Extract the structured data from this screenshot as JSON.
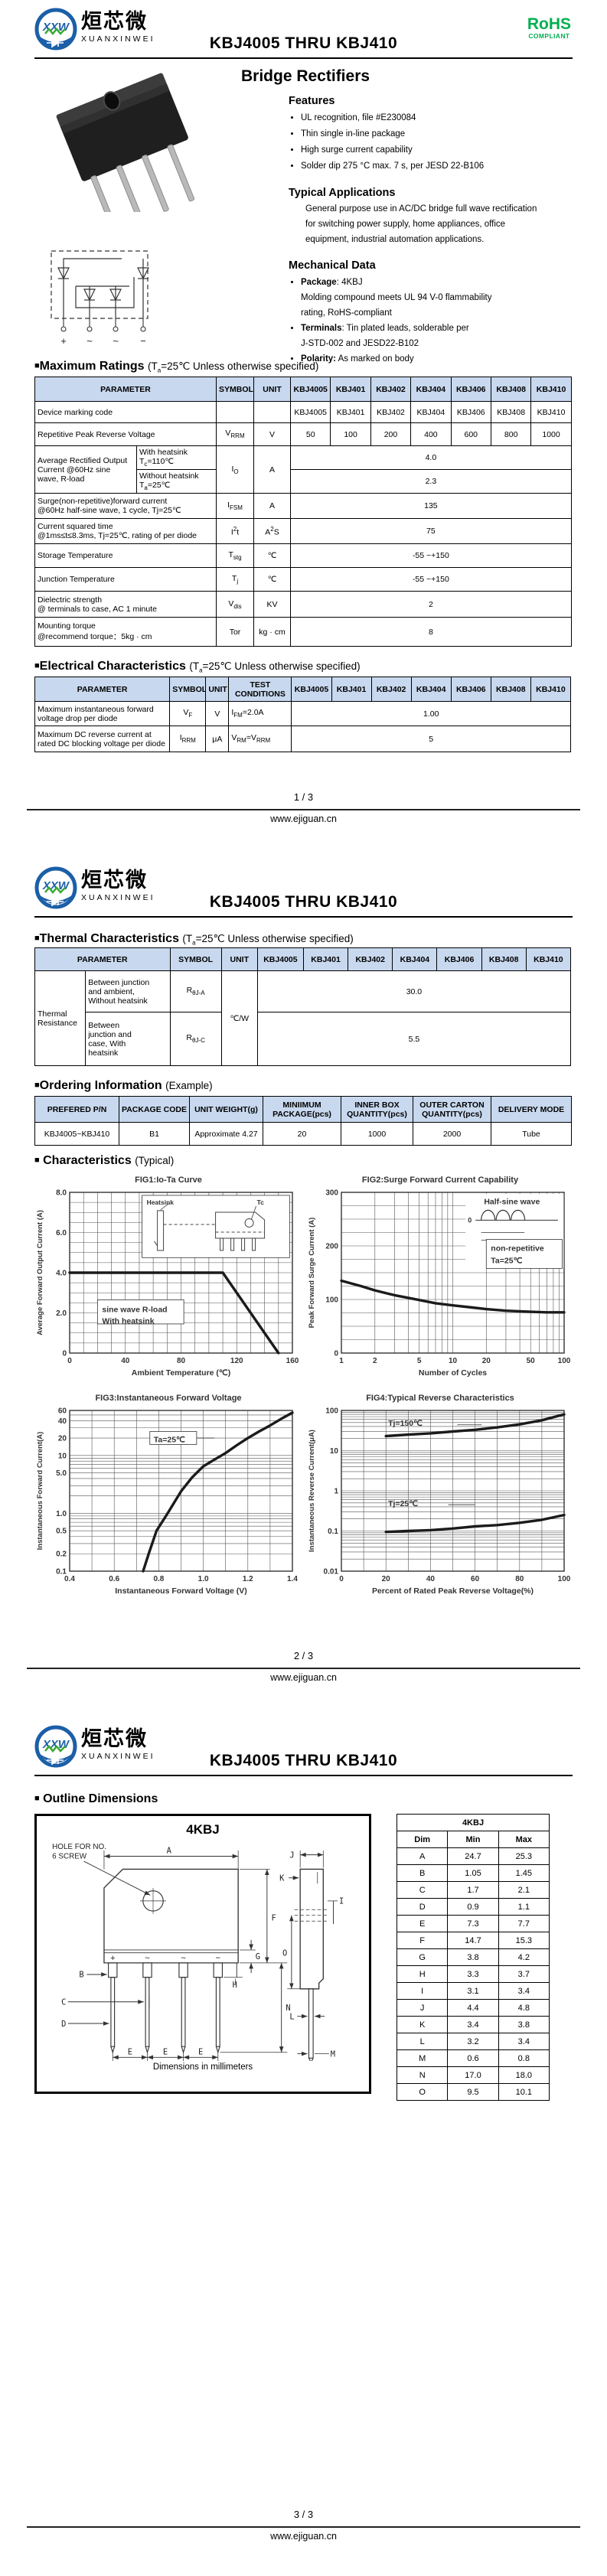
{
  "devices": [
    "KBJ4005",
    "KBJ401",
    "KBJ402",
    "KBJ404",
    "KBJ406",
    "KBJ408",
    "KBJ410"
  ],
  "header": {
    "logo_monogram": "XXW",
    "brand_cn": "烜芯微",
    "brand_en": "XUANXINWEI",
    "title": "KBJ4005 THRU KBJ410",
    "rohs": "RoHS",
    "rohs_sub": "COMPLIANT"
  },
  "footer": {
    "site": "www.ejiguan.cn",
    "page1": "1 / 3",
    "page2": "2 / 3",
    "page3": "3 / 3"
  },
  "page1": {
    "product_title": "Bridge Rectifiers",
    "features_title": "Features",
    "features": [
      "UL recognition, file #E230084",
      "Thin single in-line package",
      "High surge current capability",
      "Solder dip 275 °C max. 7 s, per JESD 22-B106"
    ],
    "apps_title": "Typical  Applications",
    "apps_lines": [
      "General purpose use in AC/DC bridge full wave rectification",
      "for switching power supply, home appliances, office",
      "equipment, industrial automation applications."
    ],
    "mech_title": "Mechanical Data",
    "mech": {
      "i1_bold": "Package",
      "i1_rest": ": 4KBJ",
      "i1_line2": "Molding compound meets UL 94 V-0 flammability",
      "i1_line3": "rating, RoHS-compliant",
      "i2_bold": "Terminals",
      "i2_rest": ": Tin plated leads, solderable per",
      "i2_line2": "J-STD-002 and JESD22-B102",
      "i3_bold": "Polarity:",
      "i3_rest": " As marked on body"
    },
    "schematic_terminals": [
      "+",
      "~",
      "~",
      "−"
    ]
  },
  "max_ratings": {
    "marker": "■",
    "title": "Maximum Ratings",
    "sub_pre": "(T",
    "sub_sub": "a",
    "sub_post": "=25℃ Unless otherwise specified)",
    "headers": {
      "parameter": "PARAMETER",
      "symbol": "SYMBOL",
      "unit": "UNIT"
    },
    "rows": {
      "marking": {
        "param": "Device marking code"
      },
      "vrrm": {
        "param": "Repetitive Peak Reverse Voltage",
        "sym": {
          "main": "V",
          "sub": "RRM"
        },
        "unit": "V",
        "values": [
          "50",
          "100",
          "200",
          "400",
          "600",
          "800",
          "1000"
        ]
      },
      "io": {
        "param_l1": "Average Rectified Output",
        "param_l2": "Current @60Hz sine",
        "param_l3": "wave, R-load",
        "cond1_l1": "With heatsink",
        "cond1_sym": {
          "main": "T",
          "sub": "c",
          "mid": "=110℃"
        },
        "cond2_l1": "Without heatsink",
        "cond2_sym": {
          "main": "T",
          "sub": "a",
          "mid": "=25℃"
        },
        "sym": {
          "main": "I",
          "sub": "O"
        },
        "unit": "A",
        "value1": "4.0",
        "value2": "2.3"
      },
      "ifsm": {
        "param_l1": "Surge(non-repetitive)forward current",
        "param_l2": "@60Hz half-sine wave, 1 cycle, Tj=25℃",
        "sym": {
          "main": "I",
          "sub": "FSM"
        },
        "unit": "A",
        "value": "135"
      },
      "i2t": {
        "param_l1": "Current squared time",
        "param_l2": "@1ms≤t≤8.3ms, Tj=25℃, rating of per diode",
        "sym": {
          "main": "I",
          "sup": "2",
          "mid": "t"
        },
        "unit": {
          "main": "A",
          "sup": "2",
          "mid": "S"
        },
        "value": "75"
      },
      "tstg": {
        "param": "Storage Temperature",
        "sym": {
          "main": "T",
          "sub": "stg"
        },
        "unit": "℃",
        "value": "-55 ~+150"
      },
      "tj": {
        "param": "Junction Temperature",
        "sym": {
          "main": "T",
          "sub": "j"
        },
        "unit": "℃",
        "value": "-55 ~+150"
      },
      "vdis": {
        "param_l1": "Dielectric strength",
        "param_l2": "@ terminals to case, AC 1 minute",
        "sym": {
          "main": "V",
          "sub": "dis"
        },
        "unit": "KV",
        "value": "2"
      },
      "tor": {
        "param_l1": "Mounting torque",
        "param_l2": "@recommend torque：5kg · cm",
        "sym": {
          "main": "Tor"
        },
        "unit": "kg · cm",
        "value": "8"
      }
    }
  },
  "elec": {
    "marker": "■",
    "title": "Electrical Characteristics",
    "sub_pre": "(T",
    "sub_sub": "a",
    "sub_post": "=25℃ Unless otherwise specified)",
    "headers": {
      "parameter": "PARAMETER",
      "symbol": "SYMBOL",
      "unit": "UNIT",
      "test": "TEST CONDITIONS"
    },
    "rows": {
      "vf": {
        "param_l1": "Maximum instantaneous forward",
        "param_l2": "voltage drop per diode",
        "sym": {
          "main": "V",
          "sub": "F"
        },
        "unit": "V",
        "test": {
          "main": "I",
          "sub": "FM",
          "mid": "=2.0A"
        },
        "value": "1.00"
      },
      "irrm": {
        "param_l1": "Maximum DC reverse current at",
        "param_l2": "rated DC blocking voltage per diode",
        "sym": {
          "main": "I",
          "sub": "RRM"
        },
        "unit": "μA",
        "test": {
          "main": "V",
          "sub": "RM",
          "mid": "=V",
          "sub2": "RRM"
        },
        "value": "5"
      }
    }
  },
  "thermal": {
    "marker": "■",
    "title": "Thermal Characteristics",
    "sub_pre": "(T",
    "sub_sub": "a",
    "sub_post": "=25℃ Unless otherwise specified)",
    "headers": {
      "parameter": "PARAMETER",
      "symbol": "SYMBOL",
      "unit": "UNIT"
    },
    "group": "Thermal Resistance",
    "rows": {
      "rja": {
        "cond_l1": "Between junction",
        "cond_l2": "and ambient,",
        "cond_l3": "Without heatsink",
        "sym": {
          "main": "R",
          "sub": "θJ-A"
        },
        "value": "30.0"
      },
      "rjc": {
        "cond_l1": "Between",
        "cond_l2": "junction and",
        "cond_l3": "case, With",
        "cond_l4": "heatsink",
        "sym": {
          "main": "R",
          "sub": "θJ-C"
        },
        "value": "5.5"
      }
    },
    "unit": "℃/W"
  },
  "ordering": {
    "marker": "■",
    "title": "Ordering Information",
    "subtitle": "(Example)",
    "headers": [
      "PREFERED P/N",
      "PACKAGE CODE",
      "UNIT WEIGHT(g)",
      "MINIIMUM PACKAGE(pcs)",
      "INNER BOX QUANTITY(pcs)",
      "OUTER CARTON QUANTITY(pcs)",
      "DELIVERY MODE"
    ],
    "row": [
      "KBJ4005~KBJ410",
      "B1",
      "Approximate 4.27",
      "20",
      "1000",
      "2000",
      "Tube"
    ]
  },
  "characteristics": {
    "marker": "■",
    "title": "Characteristics",
    "subtitle": "(Typical)"
  },
  "chart_data": [
    {
      "id": "fig1",
      "type": "line",
      "title": "FIG1:Io-Ta Curve",
      "xlabel": "Ambient Temperature (℃)",
      "ylabel": "Average Forward Output Current (A)",
      "xlim": [
        0,
        160
      ],
      "ylim": [
        0,
        8
      ],
      "xticks": [
        0,
        40,
        80,
        120,
        160
      ],
      "xtick_labels": [
        "0",
        "40",
        "80",
        "120",
        "160"
      ],
      "yticks": [
        0,
        2,
        4,
        6,
        8
      ],
      "ytick_labels": [
        "0",
        "2.0",
        "4.0",
        "6.0",
        "8.0"
      ],
      "x_minor_step": 10,
      "y_minor_step": 0.5,
      "grid": true,
      "legend": "none",
      "series": [
        {
          "name": "Io with heatsink",
          "points": [
            [
              0,
              4
            ],
            [
              110,
              4
            ],
            [
              150,
              0
            ]
          ]
        }
      ],
      "annotations": [
        "sine wave R-load",
        "With heatsink"
      ],
      "inset_labels": [
        "Heatsink",
        "Tc"
      ]
    },
    {
      "id": "fig2",
      "type": "line",
      "title": "FIG2:Surge Forward Current Capability",
      "xlabel": "Number of Cycles",
      "ylabel": "Peak Forward Surge Current (A)",
      "xscale": "log",
      "xlim": [
        1,
        100
      ],
      "ylim": [
        0,
        300
      ],
      "xticks": [
        1,
        2,
        5,
        10,
        20,
        50,
        100
      ],
      "xtick_labels": [
        "1",
        "2",
        "5",
        "10",
        "20",
        "50",
        "100"
      ],
      "yticks": [
        0,
        100,
        200,
        300
      ],
      "ytick_labels": [
        "0",
        "100",
        "200",
        "300"
      ],
      "y_minor_step": 25,
      "grid": true,
      "legend": "none",
      "series": [
        {
          "name": "IFSM",
          "points": [
            [
              1,
              135
            ],
            [
              1.5,
              125
            ],
            [
              2,
              117
            ],
            [
              3,
              108
            ],
            [
              4,
              103
            ],
            [
              5,
              99
            ],
            [
              7,
              93
            ],
            [
              10,
              89
            ],
            [
              15,
              85
            ],
            [
              20,
              82
            ],
            [
              30,
              79
            ],
            [
              50,
              77
            ],
            [
              70,
              76
            ],
            [
              100,
              76
            ]
          ]
        }
      ],
      "annotations": [
        "Half-sine wave",
        "non-repetitive",
        "Ta=25℃"
      ],
      "inset_zero": "0"
    },
    {
      "id": "fig3",
      "type": "line",
      "title": "FIG3:Instantaneous Forward Voltage",
      "xlabel": "Instantaneous Forward Voltage (V)",
      "ylabel": "Instantaneous Forward Current(A)",
      "xlim": [
        0.4,
        1.4
      ],
      "yscale": "log",
      "ylim": [
        0.1,
        60
      ],
      "xticks": [
        0.4,
        0.6,
        0.8,
        1.0,
        1.2,
        1.4
      ],
      "xtick_labels": [
        "0.4",
        "0.6",
        "0.8",
        "1.0",
        "1.2",
        "1.4"
      ],
      "yticks": [
        0.1,
        0.2,
        0.5,
        1.0,
        5.0,
        10,
        20,
        40,
        60
      ],
      "ytick_labels": [
        "0.1",
        "0.2",
        "0.5",
        "1.0",
        "5.0",
        "10",
        "20",
        "40",
        "60"
      ],
      "x_minor_step": 0.1,
      "grid": true,
      "legend": "none",
      "series": [
        {
          "name": "VF",
          "points": [
            [
              0.73,
              0.1
            ],
            [
              0.755,
              0.2
            ],
            [
              0.79,
              0.5
            ],
            [
              0.84,
              1.0
            ],
            [
              0.9,
              2.4
            ],
            [
              0.95,
              4.2
            ],
            [
              1.0,
              6.5
            ],
            [
              1.05,
              8.5
            ],
            [
              1.1,
              11
            ],
            [
              1.15,
              15
            ],
            [
              1.2,
              20
            ],
            [
              1.25,
              26
            ],
            [
              1.3,
              33
            ],
            [
              1.35,
              43
            ],
            [
              1.4,
              55
            ]
          ]
        }
      ],
      "annotations": [
        "Ta=25℃"
      ]
    },
    {
      "id": "fig4",
      "type": "line",
      "title": "FIG4:Typical Reverse Characteristics",
      "xlabel": "Percent of Rated Peak Reverse Voltage(%)",
      "ylabel": "Instantaneous Reverse Current(μA)",
      "xlim": [
        0,
        100
      ],
      "yscale": "log",
      "ylim": [
        0.01,
        100
      ],
      "xticks": [
        0,
        20,
        40,
        60,
        80,
        100
      ],
      "xtick_labels": [
        "0",
        "20",
        "40",
        "60",
        "80",
        "100"
      ],
      "yticks": [
        0.01,
        0.1,
        1,
        10,
        100
      ],
      "ytick_labels": [
        "0.01",
        "0.1",
        "1",
        "10",
        "100"
      ],
      "x_minor_step": 10,
      "grid": true,
      "legend": "inline",
      "series": [
        {
          "name": "Tj=150℃",
          "points": [
            [
              20,
              23
            ],
            [
              30,
              25
            ],
            [
              40,
              27
            ],
            [
              50,
              30
            ],
            [
              60,
              33
            ],
            [
              70,
              38
            ],
            [
              80,
              45
            ],
            [
              90,
              57
            ],
            [
              100,
              80
            ]
          ]
        },
        {
          "name": "Tj=25℃",
          "points": [
            [
              20,
              0.095
            ],
            [
              30,
              0.1
            ],
            [
              40,
              0.105
            ],
            [
              50,
              0.115
            ],
            [
              60,
              0.13
            ],
            [
              70,
              0.14
            ],
            [
              80,
              0.16
            ],
            [
              90,
              0.19
            ],
            [
              100,
              0.25
            ]
          ]
        }
      ],
      "annotations": [
        "Tj=150℃",
        "Tj=25℃"
      ]
    }
  ],
  "outline": {
    "marker": "■",
    "title": "Outline Dimensions",
    "pkg": "4KBJ",
    "hole_note_l1": "HOLE FOR NO.",
    "hole_note_l2": "6 SCREW",
    "units_note": "Dimensions in millimeters",
    "table_title": "4KBJ",
    "table_headers": [
      "Dim",
      "Min",
      "Max"
    ],
    "dims": [
      [
        "A",
        "24.7",
        "25.3"
      ],
      [
        "B",
        "1.05",
        "1.45"
      ],
      [
        "C",
        "1.7",
        "2.1"
      ],
      [
        "D",
        "0.9",
        "1.1"
      ],
      [
        "E",
        "7.3",
        "7.7"
      ],
      [
        "F",
        "14.7",
        "15.3"
      ],
      [
        "G",
        "3.8",
        "4.2"
      ],
      [
        "H",
        "3.3",
        "3.7"
      ],
      [
        "I",
        "3.1",
        "3.4"
      ],
      [
        "J",
        "4.4",
        "4.8"
      ],
      [
        "K",
        "3.4",
        "3.8"
      ],
      [
        "L",
        "3.2",
        "3.4"
      ],
      [
        "M",
        "0.6",
        "0.8"
      ],
      [
        "N",
        "17.0",
        "18.0"
      ],
      [
        "O",
        "9.5",
        "10.1"
      ]
    ],
    "labels": {
      "A": "A",
      "B": "B",
      "C": "C",
      "D": "D",
      "E": "E",
      "F": "F",
      "G": "G",
      "H": "H",
      "I": "I",
      "J": "J",
      "K": "K",
      "L": "L",
      "M": "M",
      "N": "N",
      "O": "O",
      "plus": "+",
      "ac1": "~",
      "ac2": "~",
      "minus": "−"
    }
  }
}
